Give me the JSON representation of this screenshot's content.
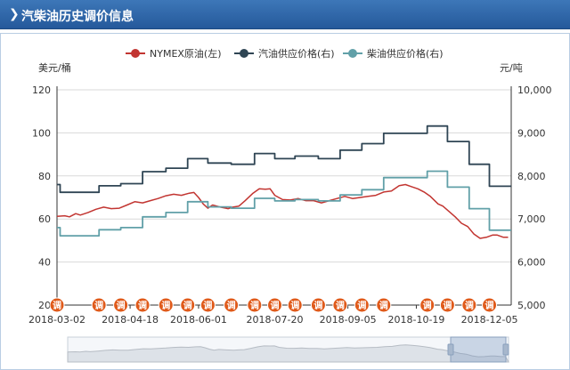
{
  "header": {
    "icon": "chevron-right-icon",
    "title": "汽柴油历史调价信息"
  },
  "chart_data": {
    "type": "line",
    "y_left": {
      "label": "美元/桶",
      "ticks": [
        "120",
        "100",
        "80",
        "60",
        "40",
        "20"
      ],
      "ylim": [
        20,
        120
      ]
    },
    "y_right": {
      "label": "元/吨",
      "ticks": [
        "10,000",
        "9,000",
        "8,000",
        "7,000",
        "6,000",
        "5,000"
      ],
      "ylim": [
        5000,
        10000
      ]
    },
    "x_ticks": [
      {
        "label": "2018-03-02",
        "day": 0
      },
      {
        "label": "2018-04-18",
        "day": 47
      },
      {
        "label": "2018-06-01",
        "day": 91
      },
      {
        "label": "2018-07-20",
        "day": 140
      },
      {
        "label": "2018-09-05",
        "day": 187
      },
      {
        "label": "2018-10-19",
        "day": 231
      },
      {
        "label": "2018-12-05",
        "day": 278
      }
    ],
    "grid": "horizontal",
    "legend_position": "top-center",
    "colors": {
      "nymex": "#c23531",
      "gasoline": "#2f4554",
      "diesel": "#61a0a8",
      "marker": "#e05a1a",
      "grid": "#d9d9d9"
    },
    "adjustment_marker_label": "调",
    "adjustment_days": [
      0,
      27,
      41,
      55,
      70,
      84,
      97,
      112,
      127,
      140,
      153,
      168,
      182,
      196,
      210,
      238,
      251,
      265,
      278
    ],
    "series": [
      {
        "name": "NYMEX原油(左)",
        "axis": "left",
        "points": [
          [
            0,
            61.2
          ],
          [
            5,
            61.5
          ],
          [
            8,
            61
          ],
          [
            12,
            62.5
          ],
          [
            15,
            61.8
          ],
          [
            20,
            63
          ],
          [
            25,
            64.5
          ],
          [
            30,
            65.5
          ],
          [
            35,
            64.8
          ],
          [
            40,
            65
          ],
          [
            45,
            66.5
          ],
          [
            50,
            68
          ],
          [
            55,
            67.5
          ],
          [
            60,
            68.5
          ],
          [
            65,
            69.5
          ],
          [
            70,
            70.8
          ],
          [
            75,
            71.5
          ],
          [
            80,
            71
          ],
          [
            85,
            72
          ],
          [
            88,
            72.3
          ],
          [
            91,
            70
          ],
          [
            94,
            67
          ],
          [
            97,
            65
          ],
          [
            100,
            66.5
          ],
          [
            105,
            65.5
          ],
          [
            110,
            64.8
          ],
          [
            113,
            65.5
          ],
          [
            117,
            66
          ],
          [
            121,
            68.5
          ],
          [
            126,
            72
          ],
          [
            130,
            74
          ],
          [
            134,
            73.8
          ],
          [
            137,
            74
          ],
          [
            140,
            71
          ],
          [
            145,
            69
          ],
          [
            150,
            68.8
          ],
          [
            155,
            69.5
          ],
          [
            160,
            68.5
          ],
          [
            165,
            68.5
          ],
          [
            170,
            67.5
          ],
          [
            175,
            68.5
          ],
          [
            180,
            69.5
          ],
          [
            185,
            70.5
          ],
          [
            190,
            69.5
          ],
          [
            195,
            70
          ],
          [
            200,
            70.5
          ],
          [
            205,
            71
          ],
          [
            210,
            72.5
          ],
          [
            215,
            73
          ],
          [
            220,
            75.5
          ],
          [
            224,
            76
          ],
          [
            228,
            75
          ],
          [
            232,
            74
          ],
          [
            236,
            72.5
          ],
          [
            240,
            70.5
          ],
          [
            245,
            67
          ],
          [
            248,
            66
          ],
          [
            252,
            63.5
          ],
          [
            256,
            61
          ],
          [
            260,
            58
          ],
          [
            264,
            56.5
          ],
          [
            268,
            53
          ],
          [
            272,
            51
          ],
          [
            276,
            51.5
          ],
          [
            280,
            52.5
          ],
          [
            283,
            52.5
          ],
          [
            287,
            51.5
          ],
          [
            290,
            51.5
          ]
        ]
      },
      {
        "name": "汽油供应价格(右)",
        "axis": "right",
        "points": [
          [
            0,
            7800
          ],
          [
            2,
            7800
          ],
          [
            2,
            7620
          ],
          [
            27,
            7620
          ],
          [
            27,
            7770
          ],
          [
            41,
            7770
          ],
          [
            41,
            7820
          ],
          [
            55,
            7820
          ],
          [
            55,
            8100
          ],
          [
            70,
            8100
          ],
          [
            70,
            8180
          ],
          [
            84,
            8180
          ],
          [
            84,
            8400
          ],
          [
            97,
            8400
          ],
          [
            97,
            8300
          ],
          [
            112,
            8300
          ],
          [
            112,
            8270
          ],
          [
            127,
            8270
          ],
          [
            127,
            8520
          ],
          [
            140,
            8520
          ],
          [
            140,
            8400
          ],
          [
            153,
            8400
          ],
          [
            153,
            8460
          ],
          [
            168,
            8460
          ],
          [
            168,
            8400
          ],
          [
            182,
            8400
          ],
          [
            182,
            8600
          ],
          [
            196,
            8600
          ],
          [
            196,
            8750
          ],
          [
            210,
            8750
          ],
          [
            210,
            8990
          ],
          [
            238,
            8990
          ],
          [
            238,
            9160
          ],
          [
            251,
            9160
          ],
          [
            251,
            8800
          ],
          [
            265,
            8800
          ],
          [
            265,
            8270
          ],
          [
            278,
            8270
          ],
          [
            278,
            7760
          ],
          [
            292,
            7760
          ]
        ]
      },
      {
        "name": "柴油供应价格(右)",
        "axis": "right",
        "points": [
          [
            0,
            6800
          ],
          [
            2,
            6800
          ],
          [
            2,
            6610
          ],
          [
            27,
            6610
          ],
          [
            27,
            6750
          ],
          [
            41,
            6750
          ],
          [
            41,
            6800
          ],
          [
            55,
            6800
          ],
          [
            55,
            7050
          ],
          [
            70,
            7050
          ],
          [
            70,
            7150
          ],
          [
            84,
            7150
          ],
          [
            84,
            7400
          ],
          [
            97,
            7400
          ],
          [
            97,
            7280
          ],
          [
            112,
            7280
          ],
          [
            112,
            7250
          ],
          [
            127,
            7250
          ],
          [
            127,
            7480
          ],
          [
            140,
            7480
          ],
          [
            140,
            7420
          ],
          [
            153,
            7420
          ],
          [
            153,
            7450
          ],
          [
            168,
            7450
          ],
          [
            168,
            7420
          ],
          [
            182,
            7420
          ],
          [
            182,
            7560
          ],
          [
            196,
            7560
          ],
          [
            196,
            7680
          ],
          [
            210,
            7680
          ],
          [
            210,
            7960
          ],
          [
            238,
            7960
          ],
          [
            238,
            8110
          ],
          [
            251,
            8110
          ],
          [
            251,
            7740
          ],
          [
            265,
            7740
          ],
          [
            265,
            7240
          ],
          [
            278,
            7240
          ],
          [
            278,
            6740
          ],
          [
            292,
            6740
          ]
        ]
      }
    ]
  }
}
